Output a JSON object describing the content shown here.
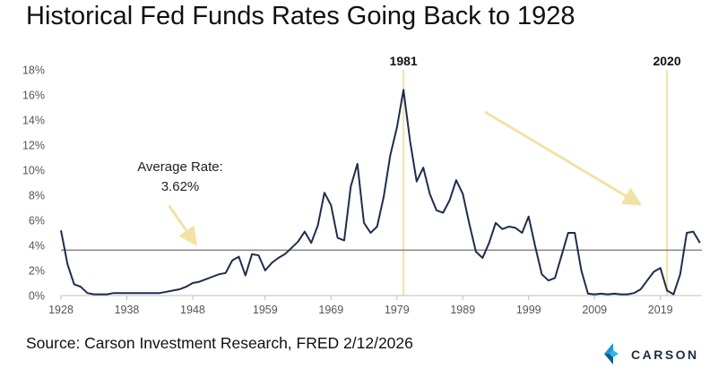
{
  "chart_data": {
    "type": "line",
    "title": "Historical Fed Funds Rates Going Back to 1928",
    "source": "Source: Carson Investment Research, FRED 2/12/2026",
    "xlabel": "",
    "ylabel": "",
    "xlim": [
      1928,
      2025.3
    ],
    "ylim": [
      0,
      18
    ],
    "x_ticks": [
      1928,
      1938,
      1948,
      1959,
      1969,
      1979,
      1989,
      1999,
      2009,
      2019
    ],
    "y_ticks": [
      {
        "value": 0,
        "label": "0%"
      },
      {
        "value": 2,
        "label": "2%"
      },
      {
        "value": 4,
        "label": "4%"
      },
      {
        "value": 6,
        "label": "6%"
      },
      {
        "value": 8,
        "label": "8%"
      },
      {
        "value": 10,
        "label": "10%"
      },
      {
        "value": 12,
        "label": "12%"
      },
      {
        "value": 14,
        "label": "14%"
      },
      {
        "value": 16,
        "label": "16%"
      },
      {
        "value": 18,
        "label": "18%"
      }
    ],
    "grid": false,
    "legend": "none",
    "series": [
      {
        "color": "#1f2d4d",
        "points": [
          [
            1928,
            5.2
          ],
          [
            1929,
            2.5
          ],
          [
            1930,
            0.9
          ],
          [
            1931,
            0.7
          ],
          [
            1932,
            0.2
          ],
          [
            1933,
            0.1
          ],
          [
            1934,
            0.1
          ],
          [
            1935,
            0.1
          ],
          [
            1936,
            0.2
          ],
          [
            1937,
            0.2
          ],
          [
            1938,
            0.2
          ],
          [
            1939,
            0.2
          ],
          [
            1940,
            0.2
          ],
          [
            1941,
            0.2
          ],
          [
            1942,
            0.2
          ],
          [
            1943,
            0.2
          ],
          [
            1944,
            0.3
          ],
          [
            1945,
            0.4
          ],
          [
            1946,
            0.5
          ],
          [
            1947,
            0.7
          ],
          [
            1948,
            1.0
          ],
          [
            1949,
            1.1
          ],
          [
            1950,
            1.3
          ],
          [
            1951,
            1.5
          ],
          [
            1952,
            1.7
          ],
          [
            1953,
            1.8
          ],
          [
            1954,
            2.8
          ],
          [
            1955,
            3.1
          ],
          [
            1956,
            1.6
          ],
          [
            1957,
            3.3
          ],
          [
            1958,
            3.2
          ],
          [
            1959,
            2.0
          ],
          [
            1960,
            2.6
          ],
          [
            1961,
            3.0
          ],
          [
            1962,
            3.3
          ],
          [
            1963,
            3.8
          ],
          [
            1964,
            4.3
          ],
          [
            1965,
            5.1
          ],
          [
            1966,
            4.2
          ],
          [
            1967,
            5.6
          ],
          [
            1968,
            8.2
          ],
          [
            1969,
            7.2
          ],
          [
            1970,
            4.6
          ],
          [
            1971,
            4.4
          ],
          [
            1972,
            8.7
          ],
          [
            1973,
            10.5
          ],
          [
            1974,
            5.8
          ],
          [
            1975,
            5.0
          ],
          [
            1976,
            5.5
          ],
          [
            1977,
            7.9
          ],
          [
            1978,
            11.2
          ],
          [
            1979,
            13.4
          ],
          [
            1980,
            16.4
          ],
          [
            1981,
            12.3
          ],
          [
            1982,
            9.1
          ],
          [
            1983,
            10.2
          ],
          [
            1984,
            8.1
          ],
          [
            1985,
            6.8
          ],
          [
            1986,
            6.6
          ],
          [
            1987,
            7.6
          ],
          [
            1988,
            9.2
          ],
          [
            1989,
            8.1
          ],
          [
            1990,
            5.7
          ],
          [
            1991,
            3.5
          ],
          [
            1992,
            3.0
          ],
          [
            1993,
            4.2
          ],
          [
            1994,
            5.8
          ],
          [
            1995,
            5.3
          ],
          [
            1996,
            5.5
          ],
          [
            1997,
            5.4
          ],
          [
            1998,
            5.0
          ],
          [
            1999,
            6.3
          ],
          [
            2000,
            3.9
          ],
          [
            2001,
            1.7
          ],
          [
            2002,
            1.2
          ],
          [
            2003,
            1.4
          ],
          [
            2004,
            3.2
          ],
          [
            2005,
            5.0
          ],
          [
            2006,
            5.0
          ],
          [
            2007,
            2.0
          ],
          [
            2008,
            0.15
          ],
          [
            2009,
            0.1
          ],
          [
            2010,
            0.15
          ],
          [
            2011,
            0.1
          ],
          [
            2012,
            0.15
          ],
          [
            2013,
            0.1
          ],
          [
            2014,
            0.1
          ],
          [
            2015,
            0.2
          ],
          [
            2016,
            0.5
          ],
          [
            2017,
            1.2
          ],
          [
            2018,
            1.9
          ],
          [
            2019,
            2.2
          ],
          [
            2020,
            0.4
          ],
          [
            2021,
            0.1
          ],
          [
            2022,
            1.7
          ],
          [
            2023,
            5.0
          ],
          [
            2024,
            5.1
          ],
          [
            2025,
            4.2
          ]
        ]
      }
    ],
    "reference_lines": [
      {
        "orientation": "horizontal",
        "value": 3.62,
        "color": "#8c8c8c"
      },
      {
        "orientation": "vertical",
        "value": 1980,
        "label": "1981",
        "color": "#f2e2a4"
      },
      {
        "orientation": "vertical",
        "value": 2020,
        "label": "2020",
        "color": "#f2e2a4"
      }
    ],
    "annotations": [
      {
        "lines": [
          "Average Rate:",
          "3.62%"
        ],
        "color": "#222222"
      }
    ],
    "arrows": [
      {
        "from": [
          1944.5,
          7.1
        ],
        "to": [
          1948.2,
          4.3
        ],
        "color": "#f2e2a4"
      },
      {
        "from": [
          1992.5,
          14.6
        ],
        "to": [
          2015.5,
          7.4
        ],
        "color": "#f2e2a4"
      }
    ]
  },
  "brand": {
    "name": "CARSON",
    "colors": [
      "#1f9ad6",
      "#2fb8e4",
      "#0a5f8c"
    ]
  }
}
